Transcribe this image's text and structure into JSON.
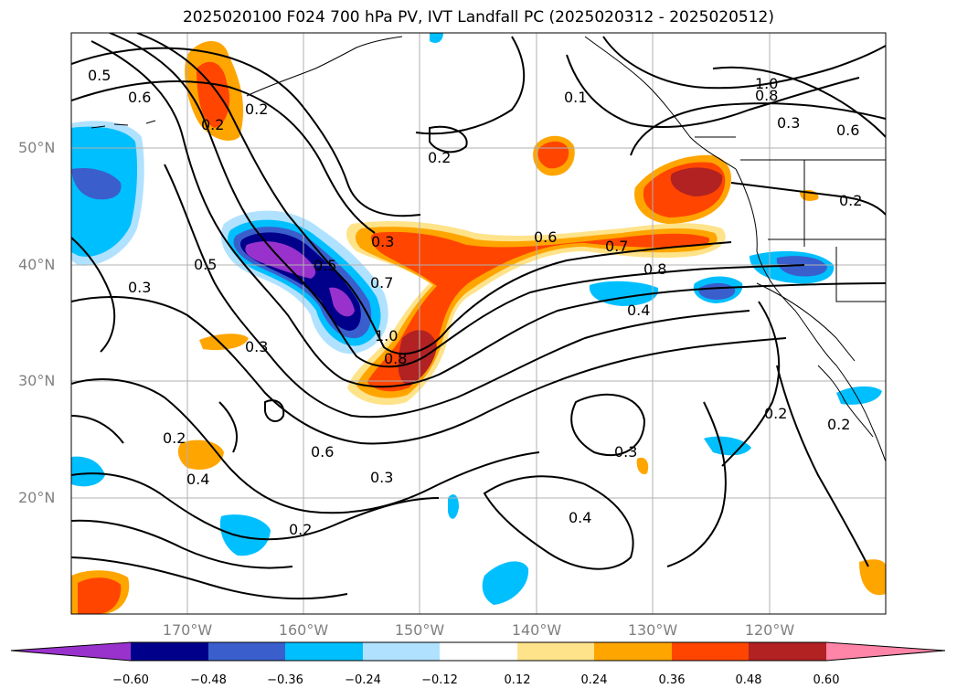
{
  "title": "2025020100 F024 700 hPa PV, IVT Landfall PC (2025020312 - 2025020512)",
  "axes": {
    "lat_labels": [
      "50°N",
      "40°N",
      "30°N",
      "20°N"
    ],
    "lon_labels": [
      "170°W",
      "160°W",
      "150°W",
      "140°W",
      "130°W",
      "120°W"
    ]
  },
  "contour_labels": [
    "0.5",
    "0.6",
    "0.2",
    "0.2",
    "0.5",
    "0.3",
    "0.3",
    "0.5",
    "0.7",
    "1.0",
    "0.8",
    "0.3",
    "0.2",
    "0.4",
    "0.6",
    "0.3",
    "0.2",
    "0.6",
    "0.7",
    "0.8",
    "0.4",
    "0.3",
    "0.4",
    "0.2",
    "0.1",
    "1.0",
    "0.8",
    "0.3",
    "0.6",
    "0.2",
    "0.2",
    "0.2"
  ],
  "colorbar": {
    "ticks": [
      "−0.60",
      "−0.48",
      "−0.36",
      "−0.24",
      "−0.12",
      "0.12",
      "0.24",
      "0.36",
      "0.48",
      "0.60"
    ],
    "colors": [
      "#9932cc",
      "#00008b",
      "#3a5fcd",
      "#00bfff",
      "#b0e2ff",
      "#ffffff",
      "#ffe38a",
      "#ffa500",
      "#ff4500",
      "#b22222",
      "#ff85a8"
    ]
  }
}
